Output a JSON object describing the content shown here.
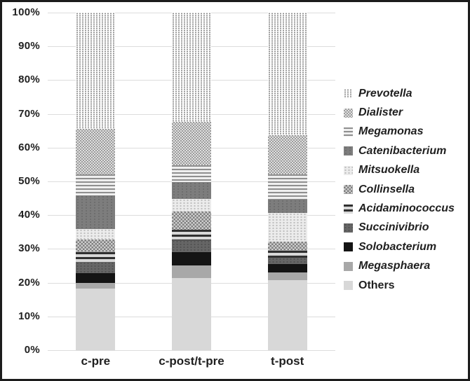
{
  "figure": {
    "background": "#ffffff",
    "border_color": "#1c1c1c"
  },
  "chart_data": {
    "type": "bar",
    "subtype": "stacked-100-percent",
    "title": "",
    "xlabel": "",
    "ylabel": "",
    "grid": true,
    "legend_position": "right",
    "stack_order": "first-series-on-top",
    "categories": [
      "c-pre",
      "c-post/t-pre",
      "t-post"
    ],
    "y_axis": {
      "min": 0,
      "max": 100,
      "step": 10,
      "tick_labels_top_to_bottom": [
        "100%",
        "90%",
        "80%",
        "70%",
        "60%",
        "50%",
        "40%",
        "30%",
        "20%",
        "10%",
        "0%"
      ]
    },
    "series": [
      {
        "name": "Prevotella",
        "italic": true,
        "pattern": "dots-sparse",
        "fill_hint": "#ffffff",
        "values": [
          34.4,
          32.4,
          36.3
        ]
      },
      {
        "name": "Dialister",
        "italic": true,
        "pattern": "checker-light",
        "fill_hint": "#bdbdbd",
        "values": [
          13.6,
          12.9,
          11.7
        ]
      },
      {
        "name": "Megamonas",
        "italic": true,
        "pattern": "hlines-gray",
        "fill_hint": "#aeaeae",
        "values": [
          6.1,
          5.0,
          7.3
        ]
      },
      {
        "name": "Catenibacterium",
        "italic": true,
        "pattern": "solid-darkgray",
        "fill_hint": "#7d7d7d",
        "values": [
          10.0,
          4.8,
          4.0
        ]
      },
      {
        "name": "Mitsuokella",
        "italic": true,
        "pattern": "dots-light",
        "fill_hint": "#e3e3e3",
        "values": [
          3.1,
          3.8,
          8.5
        ]
      },
      {
        "name": "Collinsella",
        "italic": true,
        "pattern": "checker-dark",
        "fill_hint": "#a5a5a5",
        "values": [
          3.8,
          5.4,
          2.8
        ]
      },
      {
        "name": "Acidaminococcus",
        "italic": true,
        "pattern": "hlines-dark",
        "fill_hint": "#5a5a5a",
        "values": [
          2.9,
          3.1,
          2.1
        ]
      },
      {
        "name": "Succinivibrio",
        "italic": true,
        "pattern": "textured-darkgray",
        "fill_hint": "#666666",
        "values": [
          3.3,
          3.6,
          1.8
        ]
      },
      {
        "name": "Solobacterium",
        "italic": true,
        "pattern": "solid-black",
        "fill_hint": "#141414",
        "values": [
          3.0,
          3.9,
          2.5
        ]
      },
      {
        "name": "Megasphaera",
        "italic": true,
        "pattern": "solid-gray",
        "fill_hint": "#a8a8a8",
        "values": [
          1.6,
          3.8,
          2.3
        ]
      },
      {
        "name": "Others",
        "italic": false,
        "pattern": "solid-lightgray",
        "fill_hint": "#d8d8d8",
        "values": [
          18.2,
          21.3,
          20.7
        ]
      }
    ]
  }
}
